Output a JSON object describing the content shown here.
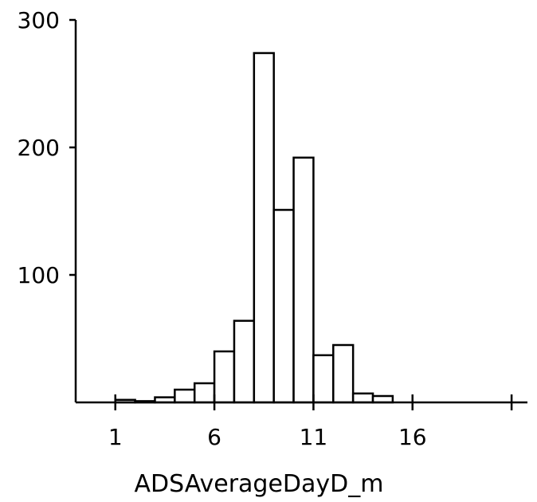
{
  "chart_data": {
    "type": "bar",
    "title": "",
    "xlabel": "ADSAverageDayD_m",
    "ylabel": "",
    "bin_width": 1,
    "bins": [
      {
        "x0": 1,
        "x1": 2,
        "count": 2
      },
      {
        "x0": 2,
        "x1": 3,
        "count": 1
      },
      {
        "x0": 3,
        "x1": 4,
        "count": 4
      },
      {
        "x0": 4,
        "x1": 5,
        "count": 10
      },
      {
        "x0": 5,
        "x1": 6,
        "count": 15
      },
      {
        "x0": 6,
        "x1": 7,
        "count": 40
      },
      {
        "x0": 7,
        "x1": 8,
        "count": 64
      },
      {
        "x0": 8,
        "x1": 9,
        "count": 274
      },
      {
        "x0": 9,
        "x1": 10,
        "count": 151
      },
      {
        "x0": 10,
        "x1": 11,
        "count": 192
      },
      {
        "x0": 11,
        "x1": 12,
        "count": 37
      },
      {
        "x0": 12,
        "x1": 13,
        "count": 45
      },
      {
        "x0": 13,
        "x1": 14,
        "count": 7
      },
      {
        "x0": 14,
        "x1": 15,
        "count": 5
      }
    ],
    "xticks": [
      1,
      6,
      11,
      16,
      21
    ],
    "xtick_labels": [
      "1",
      "6",
      "11",
      "16",
      ""
    ],
    "yticks": [
      100,
      200,
      300
    ],
    "ytick_labels": [
      "100",
      "200",
      "300"
    ],
    "xlim": [
      -1,
      21.8
    ],
    "ylim": [
      0,
      300
    ],
    "grid": false,
    "colors": {
      "bar_fill": "#ffffff",
      "bar_stroke": "#000000",
      "axis": "#000000"
    }
  }
}
